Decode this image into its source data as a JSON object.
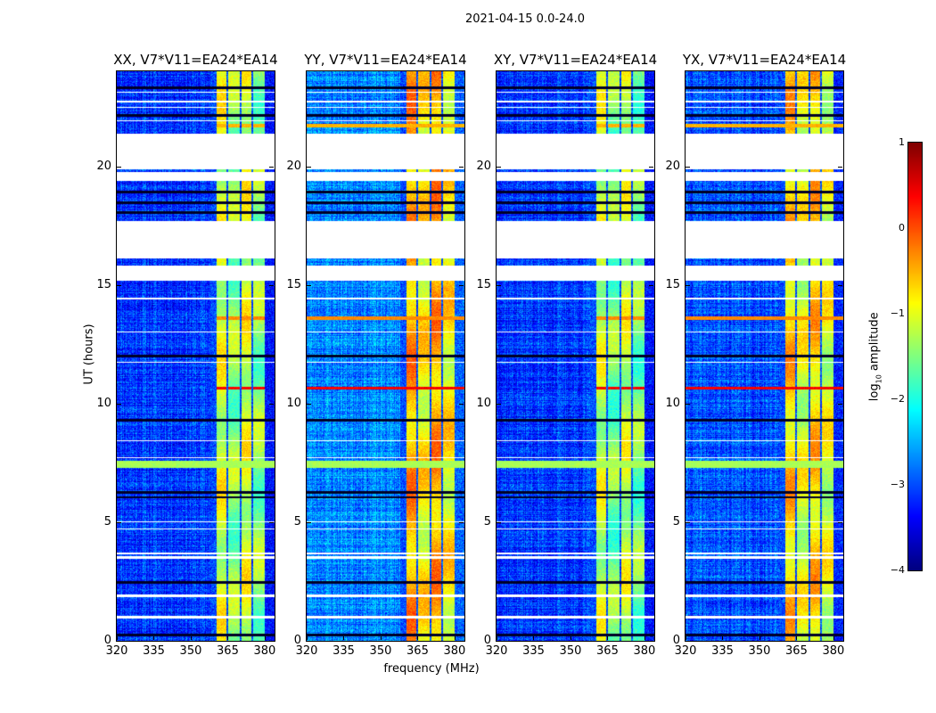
{
  "suptitle": "2021-04-15 0.0-24.0",
  "chart_data": {
    "type": "heatmap",
    "title": "2021-04-15 0.0-24.0",
    "xlabel": "frequency (MHz)",
    "ylabel": "UT (hours)",
    "xlim": [
      320,
      384
    ],
    "ylim": [
      0,
      24
    ],
    "xticks": [
      "320",
      "335",
      "350",
      "365",
      "380"
    ],
    "yticks": [
      "0",
      "5",
      "10",
      "15",
      "20"
    ],
    "panels": [
      {
        "title": "XX, V7*V11=EA24*EA14",
        "background_log_amp": -3.1,
        "band_log_amp": -1.2,
        "seed": 11
      },
      {
        "title": "YY, V7*V11=EA24*EA14",
        "background_log_amp": -2.7,
        "band_log_amp": -0.6,
        "seed": 23
      },
      {
        "title": "XY, V7*V11=EA24*EA14",
        "background_log_amp": -3.1,
        "band_log_amp": -1.3,
        "seed": 37
      },
      {
        "title": "YX, V7*V11=EA24*EA14",
        "background_log_amp": -3.0,
        "band_log_amp": -0.8,
        "seed": 41
      }
    ],
    "band_channels_mhz": [
      [
        360.5,
        364.5
      ],
      [
        365.2,
        369.8
      ],
      [
        370.5,
        374.5
      ],
      [
        375.3,
        380.0
      ]
    ],
    "flagged_hours": [
      [
        19.87,
        21.37
      ],
      [
        19.38,
        19.76
      ],
      [
        16.11,
        17.69
      ],
      [
        15.17,
        15.81
      ],
      [
        1.85,
        1.95
      ],
      [
        0.95,
        1.05
      ],
      [
        3.45,
        3.55
      ],
      [
        3.65,
        3.72
      ],
      [
        23.1,
        23.15
      ],
      [
        22.7,
        22.75
      ],
      [
        22.45,
        22.5
      ],
      [
        21.9,
        21.95
      ],
      [
        14.4,
        14.45
      ],
      [
        13.0,
        13.05
      ],
      [
        11.7,
        11.75
      ],
      [
        8.4,
        8.45
      ],
      [
        7.7,
        7.75
      ],
      [
        5.0,
        5.05
      ],
      [
        4.7,
        4.75
      ]
    ],
    "dropout_hours": [
      23.3,
      22.15,
      18.9,
      18.45,
      18.05,
      12.0,
      9.3,
      6.25,
      6.05,
      2.45,
      0.25
    ],
    "rfi_rows": [
      {
        "hour": 10.65,
        "log_amp": 0.4
      },
      {
        "hour": 13.6,
        "log_amp": -0.3
      },
      {
        "hour": 21.7,
        "log_amp": -0.5
      }
    ],
    "broadband_rows": [
      {
        "hours": [
          7.3,
          7.6
        ],
        "log_amp": -1.3
      }
    ],
    "colorbar": {
      "label_prefix": "log",
      "label_sub": "10",
      "label_suffix": " amplitude",
      "range": [
        -4,
        1
      ],
      "ticks": [
        "1",
        "0",
        "−1",
        "−2",
        "−3",
        "−4"
      ],
      "colormap": "jet"
    }
  }
}
